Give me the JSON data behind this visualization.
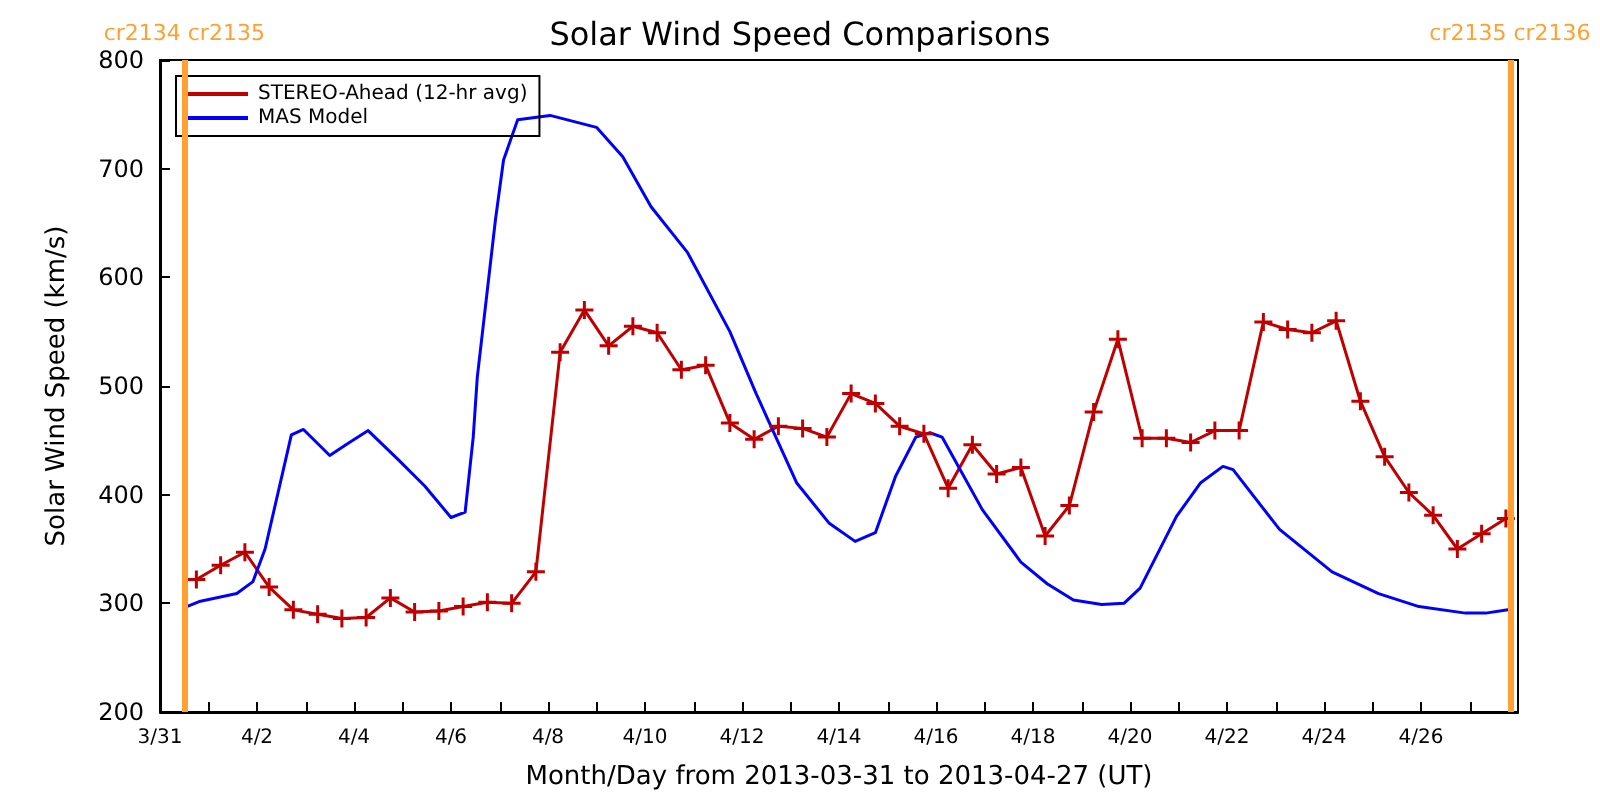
{
  "chart_data": {
    "type": "line",
    "title": "Solar Wind Speed Comparisons",
    "xlabel": "Month/Day from 2013-03-31 to 2013-04-27 (UT)",
    "ylabel": "Solar Wind Speed (km/s)",
    "xlim": [
      "2013-03-31",
      "2013-04-28"
    ],
    "xticks": [
      {
        "value": "2013-03-31",
        "label": "3/31"
      },
      {
        "value": "2013-04-01",
        "label": null
      },
      {
        "value": "2013-04-02",
        "label": "4/2"
      },
      {
        "value": "2013-04-03",
        "label": null
      },
      {
        "value": "2013-04-04",
        "label": "4/4"
      },
      {
        "value": "2013-04-05",
        "label": null
      },
      {
        "value": "2013-04-06",
        "label": "4/6"
      },
      {
        "value": "2013-04-07",
        "label": null
      },
      {
        "value": "2013-04-08",
        "label": "4/8"
      },
      {
        "value": "2013-04-09",
        "label": null
      },
      {
        "value": "2013-04-10",
        "label": "4/10"
      },
      {
        "value": "2013-04-11",
        "label": null
      },
      {
        "value": "2013-04-12",
        "label": "4/12"
      },
      {
        "value": "2013-04-13",
        "label": null
      },
      {
        "value": "2013-04-14",
        "label": "4/14"
      },
      {
        "value": "2013-04-15",
        "label": null
      },
      {
        "value": "2013-04-16",
        "label": "4/16"
      },
      {
        "value": "2013-04-17",
        "label": null
      },
      {
        "value": "2013-04-18",
        "label": "4/18"
      },
      {
        "value": "2013-04-19",
        "label": null
      },
      {
        "value": "2013-04-20",
        "label": "4/20"
      },
      {
        "value": "2013-04-21",
        "label": null
      },
      {
        "value": "2013-04-22",
        "label": "4/22"
      },
      {
        "value": "2013-04-23",
        "label": null
      },
      {
        "value": "2013-04-24",
        "label": "4/24"
      },
      {
        "value": "2013-04-25",
        "label": null
      },
      {
        "value": "2013-04-26",
        "label": "4/26"
      },
      {
        "value": "2013-04-27",
        "label": null
      }
    ],
    "ylim": [
      200,
      800
    ],
    "yticks": [
      200,
      300,
      400,
      500,
      600,
      700,
      800
    ],
    "grid": false,
    "legend": "top left",
    "ref_lines": [
      {
        "axis": "x",
        "value": "2013-03-31T12:00",
        "label": "cr2134 cr2135",
        "color": "#ffa030"
      },
      {
        "axis": "x",
        "value": "2013-04-27T20:00",
        "label": "cr2135 cr2136",
        "color": "#ffa030"
      }
    ],
    "series": [
      {
        "name": "STEREO-Ahead (12-hr avg)",
        "color": "#c00000",
        "marker": "cross",
        "x": [
          "2013-03-31T18:00",
          "2013-04-01T06:00",
          "2013-04-01T18:00",
          "2013-04-02T06:00",
          "2013-04-02T18:00",
          "2013-04-03T06:00",
          "2013-04-03T18:00",
          "2013-04-04T06:00",
          "2013-04-04T18:00",
          "2013-04-05T06:00",
          "2013-04-05T18:00",
          "2013-04-06T06:00",
          "2013-04-06T18:00",
          "2013-04-07T06:00",
          "2013-04-07T18:00",
          "2013-04-08T06:00",
          "2013-04-08T18:00",
          "2013-04-09T06:00",
          "2013-04-09T18:00",
          "2013-04-10T06:00",
          "2013-04-10T18:00",
          "2013-04-11T06:00",
          "2013-04-11T18:00",
          "2013-04-12T06:00",
          "2013-04-12T18:00",
          "2013-04-13T06:00",
          "2013-04-13T18:00",
          "2013-04-14T06:00",
          "2013-04-14T18:00",
          "2013-04-15T06:00",
          "2013-04-15T18:00",
          "2013-04-16T06:00",
          "2013-04-16T18:00",
          "2013-04-17T06:00",
          "2013-04-17T18:00",
          "2013-04-18T06:00",
          "2013-04-18T18:00",
          "2013-04-19T06:00",
          "2013-04-19T18:00",
          "2013-04-20T06:00",
          "2013-04-20T18:00",
          "2013-04-21T06:00",
          "2013-04-21T18:00",
          "2013-04-22T06:00",
          "2013-04-22T18:00",
          "2013-04-23T06:00",
          "2013-04-23T18:00",
          "2013-04-24T06:00",
          "2013-04-24T18:00",
          "2013-04-25T06:00",
          "2013-04-25T18:00",
          "2013-04-26T06:00",
          "2013-04-26T18:00",
          "2013-04-27T06:00",
          "2013-04-27T18:00"
        ],
        "values": [
          322,
          335,
          347,
          315,
          294,
          290,
          286,
          287,
          305,
          292,
          293,
          297,
          301,
          300,
          329,
          531,
          570,
          537,
          555,
          549,
          515,
          519,
          466,
          451,
          463,
          461,
          453,
          493,
          484,
          463,
          456,
          406,
          446,
          419,
          425,
          362,
          390,
          476,
          543,
          452,
          452,
          448,
          459,
          459,
          559,
          552,
          549,
          560,
          486,
          435,
          402,
          381,
          350,
          364,
          378
        ]
      },
      {
        "name": "MAS Model",
        "color": "#0000ff",
        "marker": "none",
        "x": [
          "2013-03-31T12:00",
          "2013-03-31T20:00",
          "2013-04-01T14:00",
          "2013-04-01T22:00",
          "2013-04-02T04:00",
          "2013-04-02T17:00",
          "2013-04-02T23:00",
          "2013-04-03T12:00",
          "2013-04-03T20:00",
          "2013-04-04T07:00",
          "2013-04-04T22:00",
          "2013-04-05T11:00",
          "2013-04-06T00:00",
          "2013-04-06T07:00",
          "2013-04-06T11:00",
          "2013-04-06T13:00",
          "2013-04-06T22:00",
          "2013-04-07T02:00",
          "2013-04-07T09:00",
          "2013-04-08T01:00",
          "2013-04-09T00:00",
          "2013-04-09T13:00",
          "2013-04-10T03:00",
          "2013-04-10T21:00",
          "2013-04-11T18:00",
          "2013-04-12T07:00",
          "2013-04-13T03:00",
          "2013-04-13T19:00",
          "2013-04-14T08:00",
          "2013-04-14T18:00",
          "2013-04-15T04:00",
          "2013-04-15T14:00",
          "2013-04-15T21:00",
          "2013-04-16T03:00",
          "2013-04-16T23:00",
          "2013-04-17T18:00",
          "2013-04-18T07:00",
          "2013-04-18T20:00",
          "2013-04-19T10:00",
          "2013-04-19T21:00",
          "2013-04-20T05:00",
          "2013-04-20T23:00",
          "2013-04-21T11:00",
          "2013-04-21T22:00",
          "2013-04-22T03:00",
          "2013-04-23T02:00",
          "2013-04-24T04:00",
          "2013-04-25T03:00",
          "2013-04-25T23:00",
          "2013-04-26T22:00",
          "2013-04-27T08:00",
          "2013-04-27T19:00"
        ],
        "values": [
          296,
          302,
          309,
          320,
          350,
          455,
          460,
          436,
          446,
          459,
          432,
          408,
          379,
          384,
          453,
          508,
          653,
          708,
          745,
          749,
          738,
          711,
          665,
          623,
          550,
          493,
          411,
          374,
          357,
          365,
          417,
          453,
          457,
          453,
          386,
          338,
          318,
          303,
          299,
          300,
          314,
          380,
          411,
          426,
          423,
          368,
          329,
          309,
          297,
          291,
          291,
          294
        ]
      }
    ]
  }
}
